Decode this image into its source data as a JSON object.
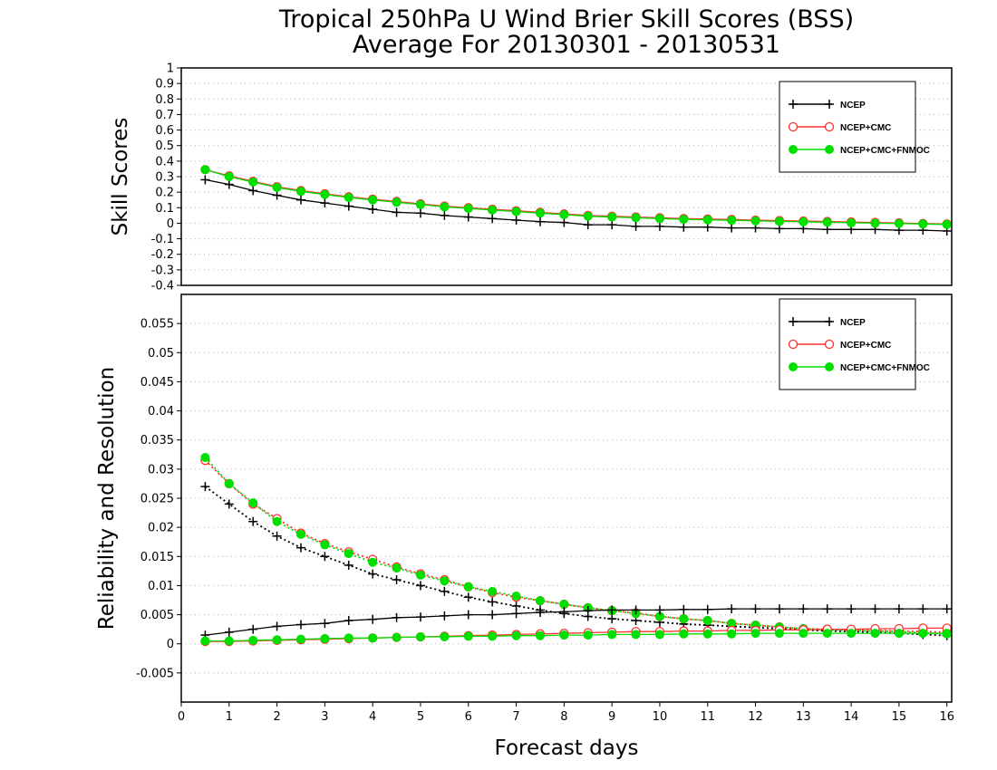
{
  "chart_data": [
    {
      "type": "line",
      "title": "Tropical 250hPa U Wind Brier Skill Scores (BSS)",
      "subtitle": "Average For 20130301 - 20130531",
      "xlabel": "",
      "ylabel": "Skill Scores",
      "xlim": [
        0,
        16.1
      ],
      "ylim": [
        -0.4,
        1
      ],
      "yticks": [
        "1",
        "0.9",
        "0.8",
        "0.7",
        "0.6",
        "0.5",
        "0.4",
        "0.3",
        "0.2",
        "0.1",
        "0",
        "-0.1",
        "-0.2",
        "-0.3",
        "-0.4"
      ],
      "grid": true,
      "legend_position": "top-right",
      "x": [
        0.5,
        1,
        1.5,
        2,
        2.5,
        3,
        3.5,
        4,
        4.5,
        5,
        5.5,
        6,
        6.5,
        7,
        7.5,
        8,
        8.5,
        9,
        9.5,
        10,
        10.5,
        11,
        11.5,
        12,
        12.5,
        13,
        13.5,
        14,
        14.5,
        15,
        15.5,
        16
      ],
      "series": [
        {
          "name": "NCEP",
          "color": "#000000",
          "marker": "plus",
          "values": [
            0.28,
            0.25,
            0.21,
            0.18,
            0.15,
            0.13,
            0.11,
            0.09,
            0.07,
            0.065,
            0.05,
            0.04,
            0.03,
            0.02,
            0.01,
            0.005,
            -0.01,
            -0.01,
            -0.02,
            -0.02,
            -0.025,
            -0.025,
            -0.03,
            -0.03,
            -0.035,
            -0.035,
            -0.04,
            -0.04,
            -0.04,
            -0.045,
            -0.045,
            -0.05
          ]
        },
        {
          "name": "NCEP+CMC",
          "color": "#ff3030",
          "marker": "open-circle",
          "values": [
            0.345,
            0.305,
            0.27,
            0.235,
            0.21,
            0.19,
            0.17,
            0.155,
            0.14,
            0.125,
            0.11,
            0.1,
            0.09,
            0.08,
            0.07,
            0.06,
            0.05,
            0.045,
            0.04,
            0.035,
            0.03,
            0.027,
            0.024,
            0.02,
            0.017,
            0.014,
            0.011,
            0.008,
            0.005,
            0.002,
            -0.002,
            -0.005
          ]
        },
        {
          "name": "NCEP+CMC+FNMOC",
          "color": "#00e000",
          "marker": "filled-circle",
          "values": [
            0.345,
            0.3,
            0.265,
            0.23,
            0.205,
            0.185,
            0.165,
            0.15,
            0.135,
            0.12,
            0.105,
            0.095,
            0.085,
            0.075,
            0.065,
            0.055,
            0.045,
            0.04,
            0.035,
            0.03,
            0.025,
            0.022,
            0.019,
            0.015,
            0.012,
            0.009,
            0.006,
            0.003,
            0.0,
            -0.002,
            -0.005,
            -0.008
          ]
        }
      ]
    },
    {
      "type": "line",
      "title": "",
      "xlabel": "Forecast days",
      "ylabel": "Reliability and Resolution",
      "xlim": [
        0,
        16.1
      ],
      "ylim": [
        -0.01,
        0.06
      ],
      "yticks": [
        "0.055",
        "0.05",
        "0.045",
        "0.04",
        "0.035",
        "0.03",
        "0.025",
        "0.02",
        "0.015",
        "0.01",
        "0.005",
        "0",
        "-0.005"
      ],
      "xticks": [
        "0",
        "1",
        "2",
        "3",
        "4",
        "5",
        "6",
        "7",
        "8",
        "9",
        "10",
        "11",
        "12",
        "13",
        "14",
        "15",
        "16"
      ],
      "grid": true,
      "legend_position": "top-right",
      "x": [
        0.5,
        1,
        1.5,
        2,
        2.5,
        3,
        3.5,
        4,
        4.5,
        5,
        5.5,
        6,
        6.5,
        7,
        7.5,
        8,
        8.5,
        9,
        9.5,
        10,
        10.5,
        11,
        11.5,
        12,
        12.5,
        13,
        13.5,
        14,
        14.5,
        15,
        15.5,
        16
      ],
      "series": [
        {
          "name": "NCEP",
          "color": "#000000",
          "marker": "plus",
          "metric": "reliability",
          "line": "dotted",
          "values": [
            0.027,
            0.024,
            0.021,
            0.0185,
            0.0165,
            0.015,
            0.0135,
            0.012,
            0.011,
            0.01,
            0.009,
            0.008,
            0.0072,
            0.0065,
            0.0058,
            0.0052,
            0.0047,
            0.0043,
            0.004,
            0.0037,
            0.0034,
            0.0032,
            0.003,
            0.0028,
            0.0026,
            0.0024,
            0.0022,
            0.0021,
            0.002,
            0.0018,
            0.0016,
            0.0014
          ]
        },
        {
          "name": "NCEP+CMC",
          "color": "#ff3030",
          "marker": "open-circle",
          "metric": "reliability",
          "line": "dotted",
          "values": [
            0.0315,
            0.0275,
            0.024,
            0.0215,
            0.019,
            0.0172,
            0.0158,
            0.0145,
            0.0132,
            0.012,
            0.011,
            0.0098,
            0.0088,
            0.008,
            0.0074,
            0.0068,
            0.0062,
            0.0057,
            0.0053,
            0.0047,
            0.0043,
            0.004,
            0.0035,
            0.0032,
            0.0029,
            0.0026,
            0.0025,
            0.0024,
            0.0023,
            0.0022,
            0.0021,
            0.002
          ]
        },
        {
          "name": "NCEP+CMC+FNMOC",
          "color": "#00e000",
          "marker": "filled-circle",
          "metric": "reliability",
          "line": "dotted",
          "values": [
            0.032,
            0.0275,
            0.0242,
            0.021,
            0.0188,
            0.017,
            0.0155,
            0.014,
            0.013,
            0.0118,
            0.0108,
            0.0098,
            0.009,
            0.0082,
            0.0074,
            0.0068,
            0.0062,
            0.0057,
            0.0052,
            0.0047,
            0.0043,
            0.004,
            0.0035,
            0.0032,
            0.0029,
            0.0026,
            0.0024,
            0.0023,
            0.0022,
            0.0021,
            0.0019,
            0.0017
          ]
        },
        {
          "name": "NCEP",
          "color": "#000000",
          "marker": "plus",
          "metric": "resolution",
          "line": "solid",
          "values": [
            0.0015,
            0.002,
            0.0025,
            0.003,
            0.0033,
            0.0035,
            0.004,
            0.0042,
            0.0045,
            0.0046,
            0.0048,
            0.005,
            0.005,
            0.0052,
            0.0054,
            0.0055,
            0.0057,
            0.0058,
            0.0058,
            0.0058,
            0.0059,
            0.0059,
            0.006,
            0.006,
            0.006,
            0.006,
            0.006,
            0.006,
            0.006,
            0.006,
            0.006,
            0.006
          ]
        },
        {
          "name": "NCEP+CMC",
          "color": "#ff3030",
          "marker": "open-circle",
          "metric": "resolution",
          "line": "solid",
          "values": [
            0.0004,
            0.0004,
            0.0005,
            0.0006,
            0.0007,
            0.0008,
            0.0009,
            0.001,
            0.0011,
            0.0012,
            0.0013,
            0.0014,
            0.0015,
            0.0016,
            0.0017,
            0.0018,
            0.0019,
            0.002,
            0.0021,
            0.0021,
            0.0022,
            0.0022,
            0.0023,
            0.0023,
            0.0024,
            0.0024,
            0.0025,
            0.0025,
            0.0026,
            0.0026,
            0.0027,
            0.0027
          ]
        },
        {
          "name": "NCEP+CMC+FNMOC",
          "color": "#00e000",
          "marker": "filled-circle",
          "metric": "resolution",
          "line": "solid",
          "values": [
            0.0005,
            0.0005,
            0.0006,
            0.0007,
            0.0008,
            0.0009,
            0.001,
            0.001,
            0.0011,
            0.0012,
            0.0012,
            0.0013,
            0.0013,
            0.0014,
            0.0014,
            0.0015,
            0.0015,
            0.0016,
            0.0016,
            0.0016,
            0.0017,
            0.0017,
            0.0017,
            0.0018,
            0.0018,
            0.0018,
            0.0018,
            0.0018,
            0.0018,
            0.0018,
            0.0018,
            0.0018
          ]
        }
      ]
    }
  ]
}
